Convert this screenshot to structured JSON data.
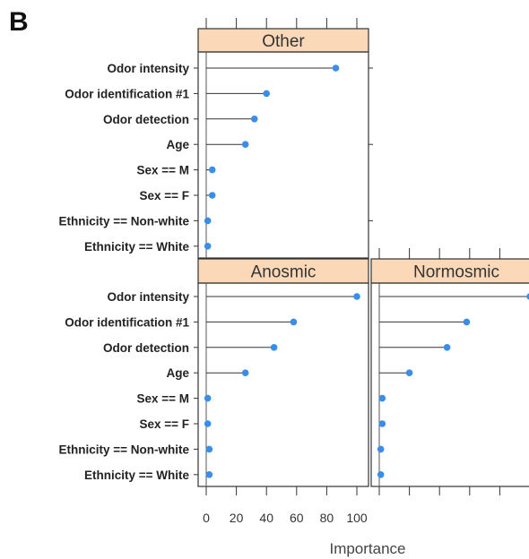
{
  "panel_label": "B",
  "chart_data": {
    "type": "scatter",
    "style": "lollipop",
    "xlabel": "Importance",
    "xlim": [
      0,
      105
    ],
    "xticks": [
      0,
      20,
      40,
      60,
      80,
      100
    ],
    "features": [
      "Odor intensity",
      "Odor identification #1",
      "Odor detection",
      "Age",
      "Sex == M",
      "Sex == F",
      "Ethnicity == Non-white",
      "Ethnicity == White"
    ],
    "point_color": "#3b8ee8",
    "strip_color": "#fbd9b8",
    "panels": [
      {
        "name": "Other",
        "values": [
          86,
          40,
          32,
          26,
          4,
          4,
          1,
          1
        ]
      },
      {
        "name": "Anosmic",
        "values": [
          100,
          58,
          45,
          26,
          1,
          1,
          2,
          2
        ]
      },
      {
        "name": "Normosmic",
        "values": [
          100,
          58,
          45,
          20,
          2,
          2,
          1,
          1
        ]
      }
    ]
  }
}
